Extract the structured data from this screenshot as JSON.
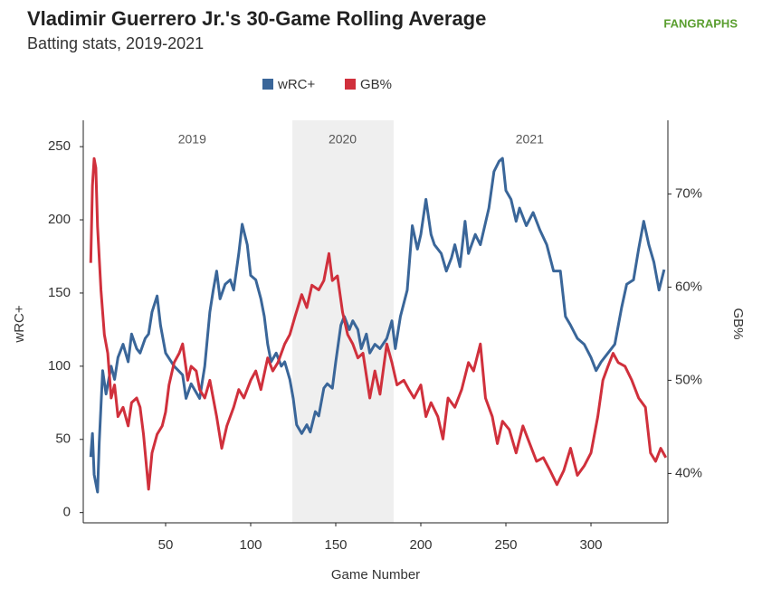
{
  "chart_data": {
    "type": "line",
    "title": "Vladimir Guerrero Jr.'s 30-Game Rolling Average",
    "subtitle": "Batting stats, 2019-2021",
    "logo": "FANGRAPHS",
    "x_label": "Game Number",
    "y_label": "wRC+",
    "y2_label": "GB%",
    "xlim": [
      1.6,
      345.2
    ],
    "xticks": [
      50,
      100,
      150,
      200,
      250,
      300
    ],
    "ylim": [
      -7,
      268
    ],
    "yticks": [
      0,
      50,
      100,
      150,
      200,
      250
    ],
    "y2lim": [
      34.7,
      77.9
    ],
    "y2ticks": [
      {
        "value": 40,
        "label": "40%"
      },
      {
        "value": 50,
        "label": "50%"
      },
      {
        "value": 60,
        "label": "60%"
      },
      {
        "value": 70,
        "label": "70%"
      }
    ],
    "shaded_region": [
      124.5,
      184
    ],
    "annotations": [
      {
        "text": "2019",
        "x": 65.6
      },
      {
        "text": "2020",
        "x": 154
      },
      {
        "text": "2021",
        "x": 264
      }
    ],
    "series": [
      {
        "name": "wRC+",
        "color": "#3a6699",
        "x": [
          6,
          7,
          8,
          10,
          11,
          13,
          15,
          18,
          20,
          22,
          25,
          28,
          30,
          33,
          35,
          38,
          40,
          42,
          45,
          47,
          50,
          55,
          60,
          62,
          65,
          70,
          73,
          76,
          78,
          80,
          82,
          85,
          88,
          90,
          93,
          95,
          98,
          100,
          103,
          106,
          108,
          110,
          112,
          115,
          118,
          120,
          123,
          125,
          127,
          130,
          133,
          135,
          138,
          140,
          143,
          145,
          148,
          150,
          153,
          155,
          158,
          160,
          163,
          165,
          168,
          170,
          173,
          176,
          180,
          183,
          185,
          188,
          192,
          195,
          198,
          200,
          203,
          206,
          208,
          212,
          215,
          218,
          220,
          223,
          226,
          228,
          232,
          235,
          240,
          243,
          246,
          248,
          250,
          253,
          256,
          258,
          262,
          266,
          270,
          274,
          278,
          282,
          285,
          288,
          292,
          296,
          300,
          303,
          306,
          310,
          314,
          318,
          321,
          325,
          328,
          331,
          334,
          337,
          340,
          343
        ],
        "values": [
          38,
          54,
          26,
          14,
          48,
          97,
          81,
          100,
          91,
          106,
          115,
          103,
          122,
          112,
          109,
          119,
          122,
          137,
          148,
          128,
          109,
          100,
          94,
          78,
          88,
          78,
          100,
          137,
          152,
          165,
          146,
          156,
          159,
          152,
          177,
          197,
          183,
          162,
          159,
          146,
          134,
          115,
          103,
          109,
          100,
          103,
          91,
          78,
          60,
          54,
          60,
          55,
          69,
          66,
          85,
          88,
          85,
          103,
          128,
          134,
          125,
          131,
          125,
          112,
          122,
          109,
          115,
          112,
          119,
          131,
          112,
          134,
          152,
          196,
          180,
          190,
          214,
          190,
          183,
          177,
          165,
          174,
          183,
          168,
          199,
          177,
          190,
          183,
          208,
          233,
          240,
          242,
          220,
          214,
          199,
          208,
          196,
          205,
          193,
          183,
          165,
          165,
          134,
          128,
          119,
          115,
          106,
          97,
          103,
          109,
          115,
          140,
          156,
          159,
          180,
          199,
          183,
          171,
          152,
          166
        ]
      },
      {
        "name": "GB%",
        "color": "#d0303c",
        "axis": "y2",
        "x": [
          6,
          7,
          8,
          9,
          10,
          12,
          14,
          16,
          18,
          20,
          22,
          25,
          28,
          30,
          33,
          35,
          37,
          40,
          42,
          45,
          48,
          50,
          52,
          55,
          58,
          60,
          63,
          65,
          68,
          70,
          73,
          76,
          80,
          83,
          86,
          90,
          93,
          96,
          100,
          103,
          106,
          110,
          113,
          116,
          120,
          123,
          126,
          130,
          133,
          136,
          140,
          143,
          146,
          148,
          151,
          154,
          157,
          160,
          163,
          166,
          170,
          173,
          176,
          180,
          183,
          186,
          190,
          193,
          196,
          200,
          203,
          206,
          210,
          213,
          216,
          220,
          224,
          228,
          231,
          235,
          238,
          242,
          245,
          248,
          252,
          256,
          260,
          264,
          268,
          272,
          276,
          280,
          284,
          288,
          292,
          296,
          300,
          304,
          307,
          310,
          313,
          316,
          320,
          324,
          328,
          332,
          335,
          338,
          341,
          344
        ],
        "values": [
          62.6,
          70.9,
          73.8,
          72.8,
          66.5,
          59.7,
          54.9,
          52.9,
          48.1,
          49.5,
          46.1,
          47.1,
          45.1,
          47.6,
          48.1,
          47.1,
          44.2,
          38.3,
          42.2,
          44.2,
          45.1,
          46.6,
          49.5,
          51.9,
          52.9,
          53.9,
          50,
          51.5,
          51,
          49,
          48.1,
          50,
          46.1,
          42.7,
          45.1,
          47.1,
          49,
          48.1,
          50,
          51,
          49,
          52.4,
          51,
          51.9,
          53.9,
          54.9,
          56.8,
          59.2,
          57.8,
          60.2,
          59.7,
          60.7,
          63.6,
          60.7,
          61.2,
          57.3,
          54.9,
          53.9,
          52.4,
          52.9,
          48.1,
          51,
          48.5,
          53.9,
          51.9,
          49.5,
          50,
          49,
          48.1,
          49.5,
          46.1,
          47.6,
          46.1,
          43.7,
          48.1,
          47.1,
          49,
          51.9,
          51,
          53.9,
          48.1,
          46.1,
          43.2,
          45.6,
          44.7,
          42.2,
          45.1,
          43.2,
          41.3,
          41.7,
          40.3,
          38.8,
          40.3,
          42.7,
          39.8,
          40.8,
          42.2,
          46.1,
          50,
          51.5,
          52.9,
          51.9,
          51.5,
          50,
          48.1,
          47.1,
          42.2,
          41.3,
          42.7,
          41.7
        ]
      }
    ]
  }
}
